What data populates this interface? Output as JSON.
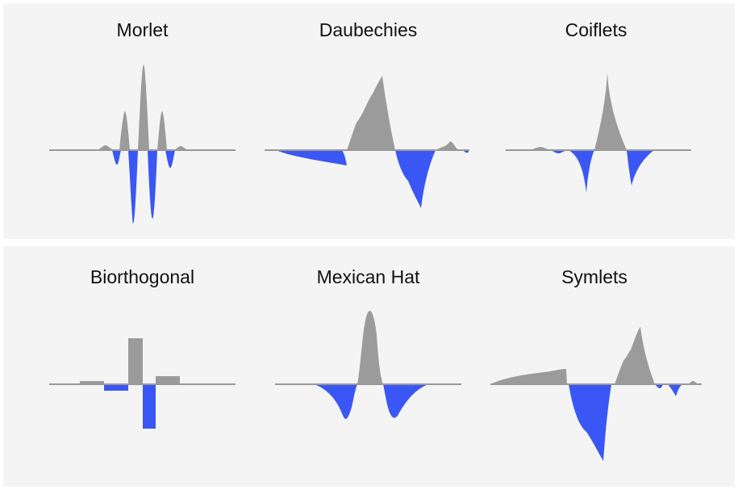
{
  "colors": {
    "positive": "#9b9b9b",
    "negative": "#3a57f5",
    "axis": "#999999",
    "panel_bg": "#f4f4f4"
  },
  "wavelets": [
    {
      "name": "Morlet"
    },
    {
      "name": "Daubechies"
    },
    {
      "name": "Coiflets"
    },
    {
      "name": "Biorthogonal"
    },
    {
      "name": "Mexican Hat"
    },
    {
      "name": "Symlets"
    }
  ]
}
